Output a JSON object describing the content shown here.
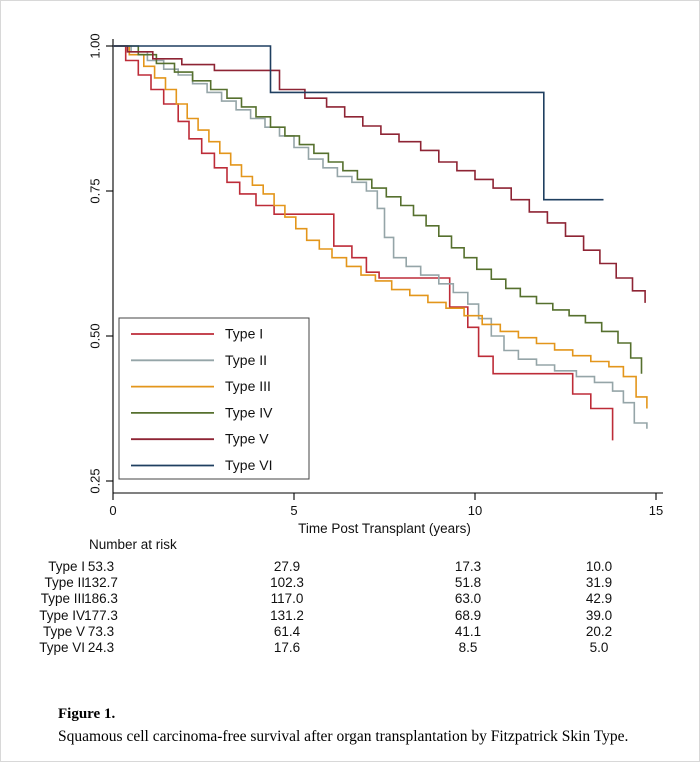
{
  "figure": {
    "caption_title": "Figure 1.",
    "caption_text": "Squamous cell carcinoma-free survival after organ transplantation by Fitzpatrick Skin Type."
  },
  "chart_data": {
    "type": "line",
    "subtype": "kaplan-meier-step",
    "title": "",
    "xlabel": "Time Post Transplant (years)",
    "ylabel": "",
    "xlim": [
      0,
      15
    ],
    "ylim": [
      0.25,
      1.0
    ],
    "x_ticks": [
      "0",
      "5",
      "10",
      "15"
    ],
    "y_ticks": [
      "0.25",
      "0.50",
      "0.75",
      "1.00"
    ],
    "grid": false,
    "legend_position": "inside-lower-left",
    "series": [
      {
        "name": "Type I",
        "color": "#bd2c38",
        "points": [
          [
            0,
            1.0
          ],
          [
            0.35,
            0.975
          ],
          [
            0.7,
            0.95
          ],
          [
            1.05,
            0.925
          ],
          [
            1.4,
            0.9
          ],
          [
            1.8,
            0.87
          ],
          [
            2.1,
            0.84
          ],
          [
            2.45,
            0.815
          ],
          [
            2.8,
            0.79
          ],
          [
            3.15,
            0.765
          ],
          [
            3.5,
            0.745
          ],
          [
            3.95,
            0.725
          ],
          [
            4.45,
            0.71
          ],
          [
            6.1,
            0.655
          ],
          [
            6.6,
            0.635
          ],
          [
            7.0,
            0.61
          ],
          [
            7.35,
            0.6
          ],
          [
            9.3,
            0.55
          ],
          [
            9.8,
            0.515
          ],
          [
            10.1,
            0.465
          ],
          [
            10.5,
            0.435
          ],
          [
            12.7,
            0.4
          ],
          [
            13.2,
            0.375
          ],
          [
            13.8,
            0.32
          ]
        ]
      },
      {
        "name": "Type II",
        "color": "#95a5a8",
        "points": [
          [
            0,
            1.0
          ],
          [
            0.5,
            0.99
          ],
          [
            0.95,
            0.975
          ],
          [
            1.4,
            0.96
          ],
          [
            1.8,
            0.95
          ],
          [
            2.2,
            0.935
          ],
          [
            2.6,
            0.92
          ],
          [
            3.0,
            0.905
          ],
          [
            3.4,
            0.89
          ],
          [
            3.8,
            0.875
          ],
          [
            4.2,
            0.86
          ],
          [
            4.6,
            0.845
          ],
          [
            5.0,
            0.825
          ],
          [
            5.4,
            0.805
          ],
          [
            5.8,
            0.79
          ],
          [
            6.2,
            0.775
          ],
          [
            6.6,
            0.765
          ],
          [
            7.0,
            0.75
          ],
          [
            7.3,
            0.72
          ],
          [
            7.5,
            0.67
          ],
          [
            7.75,
            0.635
          ],
          [
            8.1,
            0.62
          ],
          [
            8.5,
            0.605
          ],
          [
            9.0,
            0.59
          ],
          [
            9.4,
            0.575
          ],
          [
            9.8,
            0.555
          ],
          [
            10.1,
            0.53
          ],
          [
            10.45,
            0.5
          ],
          [
            10.8,
            0.475
          ],
          [
            11.2,
            0.46
          ],
          [
            11.7,
            0.45
          ],
          [
            12.2,
            0.44
          ],
          [
            12.8,
            0.43
          ],
          [
            13.3,
            0.42
          ],
          [
            13.8,
            0.405
          ],
          [
            14.1,
            0.385
          ],
          [
            14.4,
            0.35
          ],
          [
            14.75,
            0.34
          ]
        ]
      },
      {
        "name": "Type III",
        "color": "#e3961b",
        "points": [
          [
            0,
            1.0
          ],
          [
            0.45,
            0.985
          ],
          [
            0.85,
            0.965
          ],
          [
            1.15,
            0.945
          ],
          [
            1.45,
            0.925
          ],
          [
            1.75,
            0.9
          ],
          [
            2.05,
            0.875
          ],
          [
            2.35,
            0.855
          ],
          [
            2.65,
            0.835
          ],
          [
            2.95,
            0.815
          ],
          [
            3.25,
            0.795
          ],
          [
            3.55,
            0.775
          ],
          [
            3.85,
            0.76
          ],
          [
            4.15,
            0.745
          ],
          [
            4.45,
            0.725
          ],
          [
            4.75,
            0.705
          ],
          [
            5.05,
            0.685
          ],
          [
            5.35,
            0.665
          ],
          [
            5.7,
            0.65
          ],
          [
            6.05,
            0.635
          ],
          [
            6.45,
            0.62
          ],
          [
            6.85,
            0.605
          ],
          [
            7.25,
            0.595
          ],
          [
            7.7,
            0.58
          ],
          [
            8.2,
            0.57
          ],
          [
            8.7,
            0.558
          ],
          [
            9.2,
            0.548
          ],
          [
            9.7,
            0.535
          ],
          [
            10.2,
            0.52
          ],
          [
            10.7,
            0.508
          ],
          [
            11.2,
            0.497
          ],
          [
            11.7,
            0.487
          ],
          [
            12.2,
            0.476
          ],
          [
            12.7,
            0.466
          ],
          [
            13.2,
            0.456
          ],
          [
            13.7,
            0.447
          ],
          [
            14.1,
            0.43
          ],
          [
            14.45,
            0.395
          ],
          [
            14.75,
            0.375
          ]
        ]
      },
      {
        "name": "Type IV",
        "color": "#56702e",
        "points": [
          [
            0,
            1.0
          ],
          [
            0.7,
            0.985
          ],
          [
            1.2,
            0.97
          ],
          [
            1.7,
            0.955
          ],
          [
            2.2,
            0.94
          ],
          [
            2.7,
            0.925
          ],
          [
            3.15,
            0.91
          ],
          [
            3.55,
            0.895
          ],
          [
            3.95,
            0.878
          ],
          [
            4.35,
            0.86
          ],
          [
            4.75,
            0.845
          ],
          [
            5.15,
            0.83
          ],
          [
            5.55,
            0.815
          ],
          [
            5.95,
            0.8
          ],
          [
            6.35,
            0.785
          ],
          [
            6.75,
            0.77
          ],
          [
            7.15,
            0.755
          ],
          [
            7.55,
            0.74
          ],
          [
            7.95,
            0.725
          ],
          [
            8.3,
            0.708
          ],
          [
            8.65,
            0.69
          ],
          [
            9.0,
            0.672
          ],
          [
            9.35,
            0.652
          ],
          [
            9.7,
            0.635
          ],
          [
            10.05,
            0.615
          ],
          [
            10.45,
            0.598
          ],
          [
            10.85,
            0.582
          ],
          [
            11.25,
            0.568
          ],
          [
            11.7,
            0.556
          ],
          [
            12.15,
            0.545
          ],
          [
            12.6,
            0.535
          ],
          [
            13.05,
            0.523
          ],
          [
            13.5,
            0.508
          ],
          [
            13.95,
            0.488
          ],
          [
            14.3,
            0.462
          ],
          [
            14.6,
            0.435
          ]
        ]
      },
      {
        "name": "Type V",
        "color": "#8e2434",
        "points": [
          [
            0,
            1.0
          ],
          [
            0.4,
            0.99
          ],
          [
            1.1,
            0.978
          ],
          [
            1.9,
            0.968
          ],
          [
            2.8,
            0.958
          ],
          [
            4.6,
            0.925
          ],
          [
            5.3,
            0.91
          ],
          [
            5.9,
            0.895
          ],
          [
            6.4,
            0.878
          ],
          [
            6.9,
            0.862
          ],
          [
            7.4,
            0.848
          ],
          [
            7.9,
            0.835
          ],
          [
            8.5,
            0.82
          ],
          [
            9.0,
            0.8
          ],
          [
            9.5,
            0.785
          ],
          [
            10.0,
            0.77
          ],
          [
            10.5,
            0.755
          ],
          [
            11.0,
            0.735
          ],
          [
            11.5,
            0.714
          ],
          [
            12.0,
            0.695
          ],
          [
            12.5,
            0.672
          ],
          [
            13.0,
            0.648
          ],
          [
            13.45,
            0.625
          ],
          [
            13.9,
            0.6
          ],
          [
            14.35,
            0.578
          ],
          [
            14.7,
            0.557
          ]
        ]
      },
      {
        "name": "Type VI",
        "color": "#1f3f60",
        "points": [
          [
            0,
            1.0
          ],
          [
            4.35,
            0.92
          ],
          [
            11.9,
            0.735
          ],
          [
            13.55,
            0.735
          ]
        ]
      }
    ]
  },
  "risk_table": {
    "title": "Number at risk",
    "times": [
      "0",
      "5",
      "10",
      "15"
    ],
    "rows": [
      {
        "label": "Type I",
        "values": [
          "53.3",
          "27.9",
          "17.3",
          "10.0"
        ]
      },
      {
        "label": "Type II",
        "values": [
          "132.7",
          "102.3",
          "51.8",
          "31.9"
        ]
      },
      {
        "label": "Type III",
        "values": [
          "186.3",
          "117.0",
          "63.0",
          "42.9"
        ]
      },
      {
        "label": "Type IV",
        "values": [
          "177.3",
          "131.2",
          "68.9",
          "39.0"
        ]
      },
      {
        "label": "Type V",
        "values": [
          "73.3",
          "61.4",
          "41.1",
          "20.2"
        ]
      },
      {
        "label": "Type VI",
        "values": [
          "24.3",
          "17.6",
          "8.5",
          "5.0"
        ]
      }
    ]
  }
}
